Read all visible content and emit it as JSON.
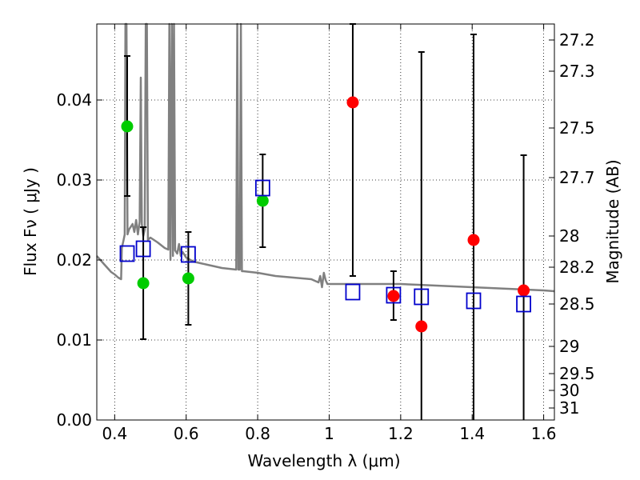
{
  "chart_data": {
    "type": "scatter",
    "title": "",
    "xlabel": "Wavelength  λ (μm)",
    "ylabel": "Flux  Fν  ( μJy )",
    "y2label": "Magnitude (AB)",
    "xlim": [
      0.35,
      1.63
    ],
    "ylim": [
      0.0,
      0.0495
    ],
    "grid": true,
    "x_ticks": [
      0.4,
      0.6,
      0.8,
      1.0,
      1.2,
      1.4,
      1.6
    ],
    "x_tick_labels": [
      "0.4",
      "0.6",
      "0.8",
      "1",
      "1.2",
      "1.4",
      "1.6"
    ],
    "y_ticks": [
      0.0,
      0.01,
      0.02,
      0.03,
      0.04
    ],
    "y_tick_labels": [
      "0.00",
      "0.01",
      "0.02",
      "0.03",
      "0.04"
    ],
    "mag_ticks": [
      {
        "flux": 0.0475,
        "label": "27.2"
      },
      {
        "flux": 0.0436,
        "label": "27.3"
      },
      {
        "flux": 0.0365,
        "label": "27.5"
      },
      {
        "flux": 0.0303,
        "label": "27.7"
      },
      {
        "flux": 0.023,
        "label": "28"
      },
      {
        "flux": 0.0191,
        "label": "28.2"
      },
      {
        "flux": 0.0145,
        "label": "28.5"
      },
      {
        "flux": 0.0092,
        "label": "29"
      },
      {
        "flux": 0.0058,
        "label": "29.5"
      },
      {
        "flux": 0.0037,
        "label": "30"
      },
      {
        "flux": 0.0015,
        "label": "31"
      }
    ],
    "colors": {
      "green": "#00cc00",
      "red": "#ff0000",
      "blue": "#0000cc",
      "model": "#808080"
    },
    "series": [
      {
        "marker": "circle",
        "color": "green",
        "points": [
          {
            "x": 0.435,
            "y": 0.0367,
            "lo": 0.028,
            "hi": 0.0455
          },
          {
            "x": 0.48,
            "y": 0.0171,
            "lo": 0.0101,
            "hi": 0.0241
          },
          {
            "x": 0.606,
            "y": 0.0177,
            "lo": 0.0119,
            "hi": 0.0235
          },
          {
            "x": 0.814,
            "y": 0.0274,
            "lo": 0.0216,
            "hi": 0.0332
          }
        ]
      },
      {
        "marker": "circle",
        "color": "red",
        "points": [
          {
            "x": 1.066,
            "y": 0.0397,
            "lo": 0.018,
            "hi": 0.0495
          },
          {
            "x": 1.18,
            "y": 0.0155,
            "lo": 0.0125,
            "hi": 0.0186
          },
          {
            "x": 1.258,
            "y": 0.0117,
            "lo": -0.0005,
            "hi": 0.046
          },
          {
            "x": 1.404,
            "y": 0.0225,
            "lo": -0.0005,
            "hi": 0.0482
          },
          {
            "x": 1.544,
            "y": 0.0162,
            "lo": -0.0005,
            "hi": 0.0331
          }
        ]
      },
      {
        "marker": "square",
        "color": "blue",
        "points": [
          {
            "x": 0.435,
            "y": 0.0208
          },
          {
            "x": 0.48,
            "y": 0.0214
          },
          {
            "x": 0.606,
            "y": 0.0207
          },
          {
            "x": 0.814,
            "y": 0.029
          },
          {
            "x": 1.066,
            "y": 0.016
          },
          {
            "x": 1.18,
            "y": 0.0156
          },
          {
            "x": 1.258,
            "y": 0.0154
          },
          {
            "x": 1.404,
            "y": 0.0149
          },
          {
            "x": 1.544,
            "y": 0.0145
          }
        ]
      }
    ],
    "model_spectrum": [
      [
        0.35,
        0.0205
      ],
      [
        0.37,
        0.0195
      ],
      [
        0.39,
        0.0185
      ],
      [
        0.4,
        0.0182
      ],
      [
        0.41,
        0.0178
      ],
      [
        0.418,
        0.0176
      ],
      [
        0.42,
        0.0215
      ],
      [
        0.425,
        0.0225
      ],
      [
        0.428,
        0.0232
      ],
      [
        0.43,
        0.0495
      ],
      [
        0.433,
        0.0495
      ],
      [
        0.436,
        0.0232
      ],
      [
        0.44,
        0.0238
      ],
      [
        0.45,
        0.0245
      ],
      [
        0.455,
        0.0235
      ],
      [
        0.46,
        0.025
      ],
      [
        0.465,
        0.0232
      ],
      [
        0.47,
        0.0248
      ],
      [
        0.473,
        0.0428
      ],
      [
        0.476,
        0.0245
      ],
      [
        0.48,
        0.023
      ],
      [
        0.484,
        0.0238
      ],
      [
        0.487,
        0.0495
      ],
      [
        0.49,
        0.0495
      ],
      [
        0.493,
        0.0225
      ],
      [
        0.5,
        0.0228
      ],
      [
        0.52,
        0.0222
      ],
      [
        0.54,
        0.0215
      ],
      [
        0.55,
        0.0213
      ],
      [
        0.553,
        0.0495
      ],
      [
        0.556,
        0.02
      ],
      [
        0.56,
        0.0495
      ],
      [
        0.563,
        0.0205
      ],
      [
        0.566,
        0.0495
      ],
      [
        0.569,
        0.0212
      ],
      [
        0.575,
        0.0208
      ],
      [
        0.58,
        0.022
      ],
      [
        0.585,
        0.0205
      ],
      [
        0.59,
        0.021
      ],
      [
        0.6,
        0.0203
      ],
      [
        0.62,
        0.0198
      ],
      [
        0.64,
        0.0196
      ],
      [
        0.66,
        0.0194
      ],
      [
        0.68,
        0.0192
      ],
      [
        0.7,
        0.019
      ],
      [
        0.72,
        0.0189
      ],
      [
        0.74,
        0.0188
      ],
      [
        0.743,
        0.0495
      ],
      [
        0.746,
        0.0188
      ],
      [
        0.75,
        0.0188
      ],
      [
        0.753,
        0.0495
      ],
      [
        0.756,
        0.0186
      ],
      [
        0.76,
        0.0186
      ],
      [
        0.8,
        0.0184
      ],
      [
        0.85,
        0.018
      ],
      [
        0.9,
        0.0178
      ],
      [
        0.95,
        0.0176
      ],
      [
        0.97,
        0.0172
      ],
      [
        0.975,
        0.018
      ],
      [
        0.98,
        0.0166
      ],
      [
        0.985,
        0.0184
      ],
      [
        0.99,
        0.0175
      ],
      [
        0.995,
        0.017
      ],
      [
        1.0,
        0.017
      ],
      [
        1.05,
        0.017
      ],
      [
        1.1,
        0.017
      ],
      [
        1.15,
        0.017
      ],
      [
        1.2,
        0.017
      ],
      [
        1.25,
        0.0169
      ],
      [
        1.3,
        0.0168
      ],
      [
        1.35,
        0.0167
      ],
      [
        1.4,
        0.0166
      ],
      [
        1.45,
        0.0165
      ],
      [
        1.5,
        0.0164
      ],
      [
        1.55,
        0.0163
      ],
      [
        1.6,
        0.0162
      ],
      [
        1.63,
        0.0161
      ]
    ]
  }
}
